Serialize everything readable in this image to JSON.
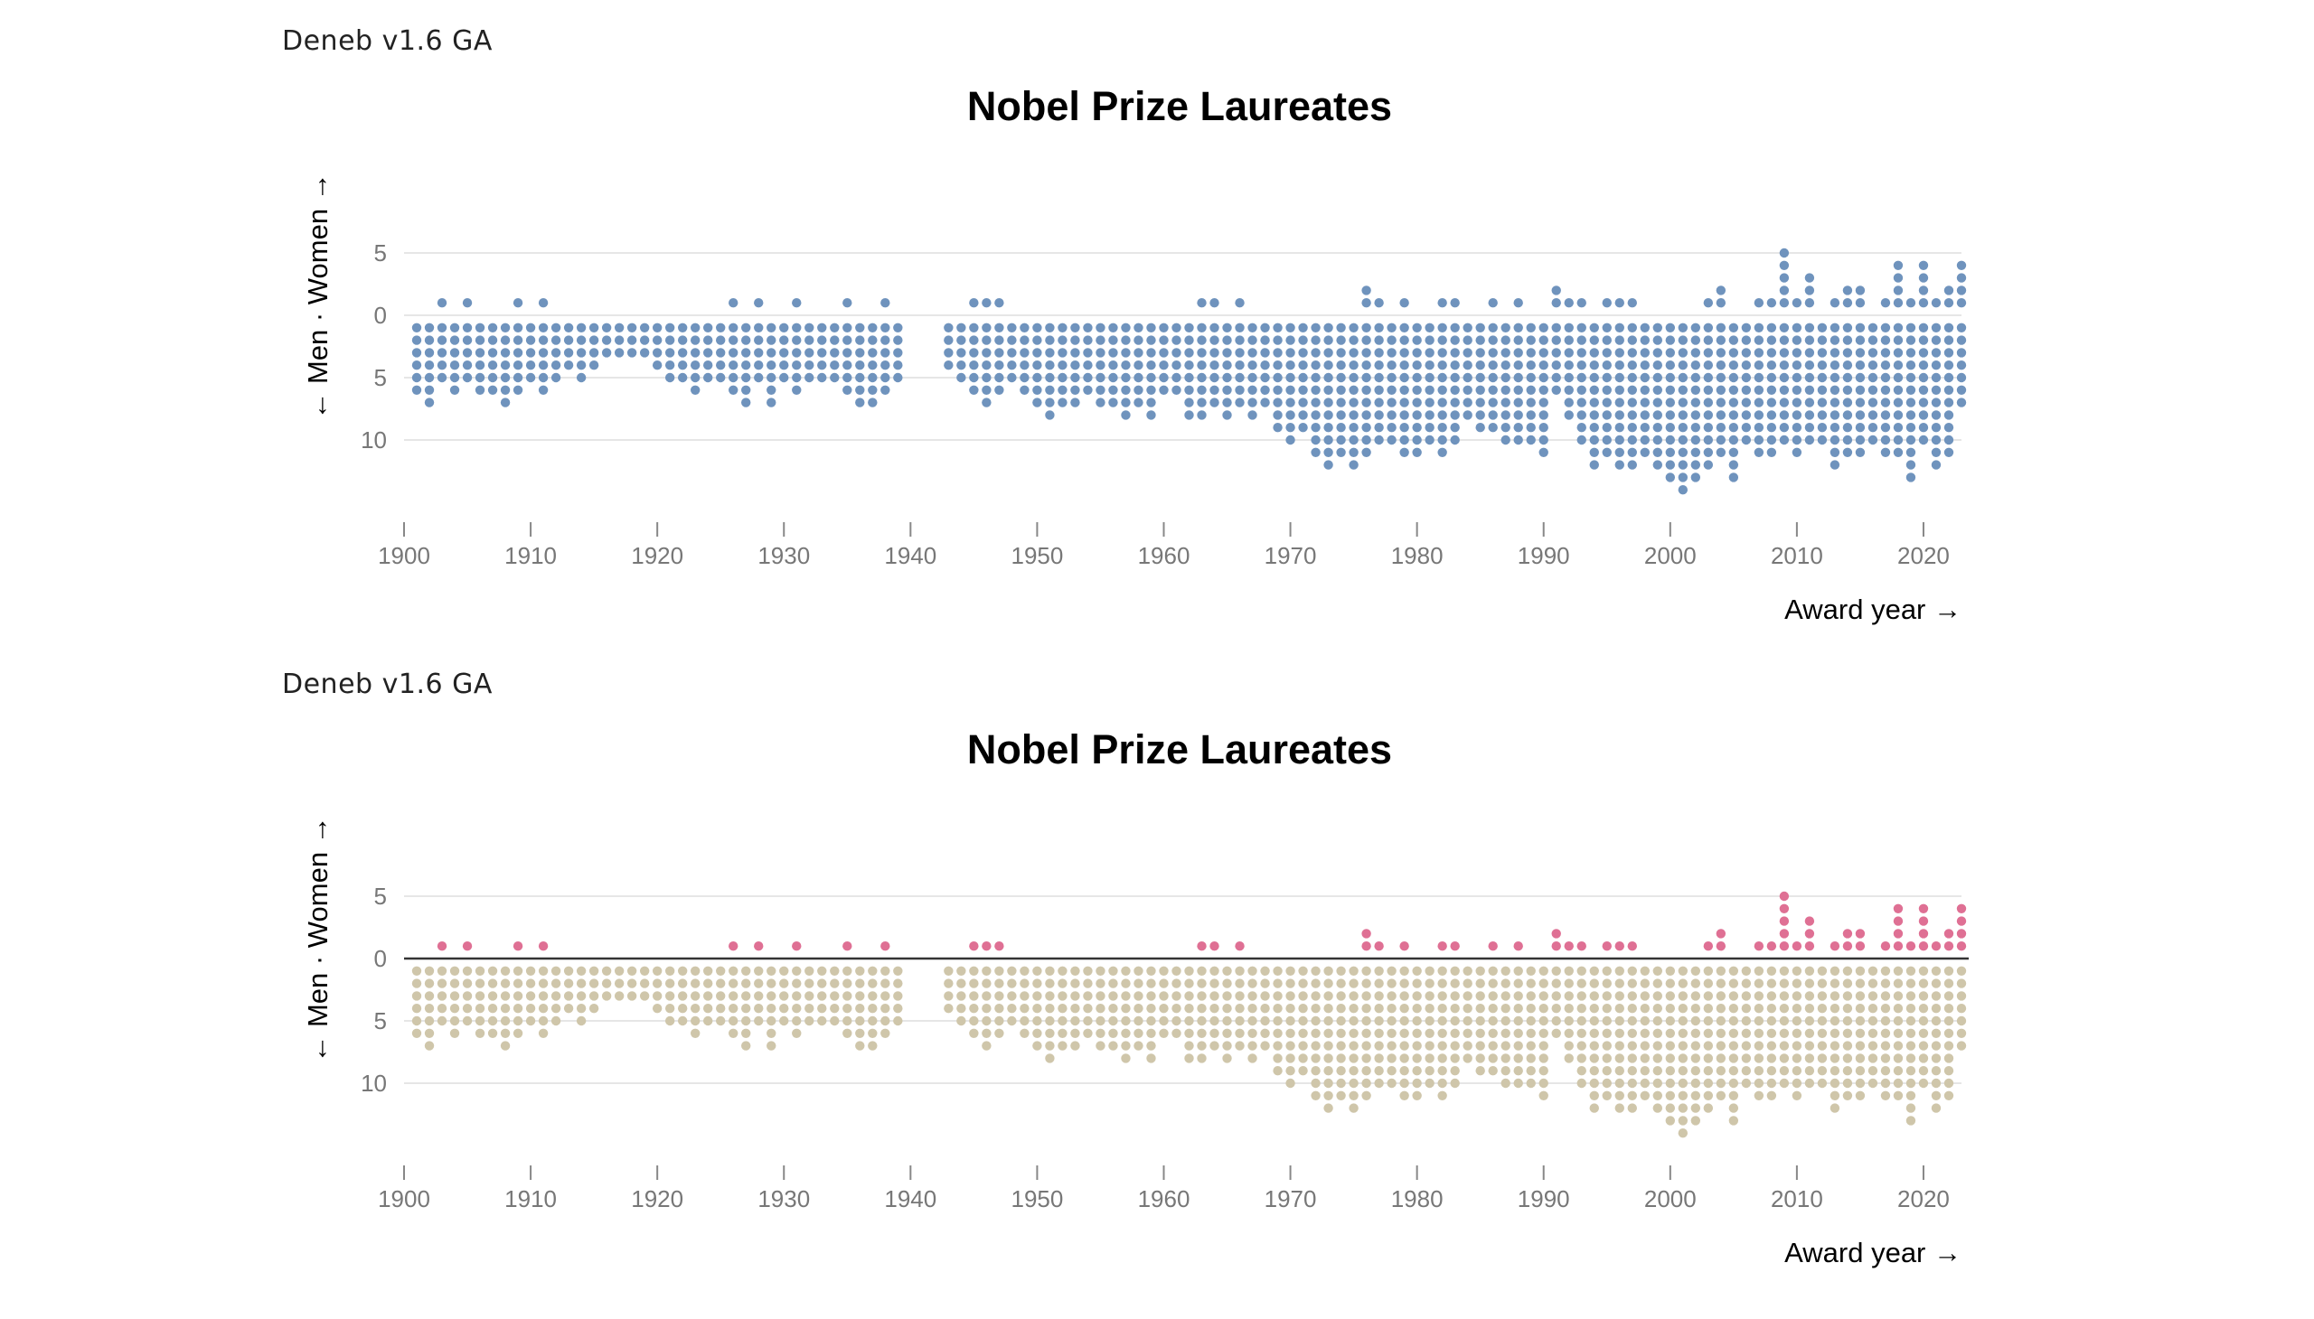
{
  "colors": {
    "single": "#6f93bd",
    "men": "#cfc6aa",
    "women": "#df7094",
    "grid": "#dddddd",
    "zero_rule": "#333333"
  },
  "chart_data": [
    {
      "type": "scatter",
      "brand": "Deneb v1.6 GA",
      "title": "Nobel Prize Laureates",
      "xlabel": "Award year →",
      "ylabel": "← Men · Women →",
      "xlim": [
        1900,
        2023
      ],
      "xticks": [
        1900,
        1910,
        1920,
        1930,
        1940,
        1950,
        1960,
        1970,
        1980,
        1990,
        2000,
        2010,
        2020
      ],
      "yticks": [
        {
          "value": 5,
          "label": "5"
        },
        {
          "value": 0,
          "label": "0"
        },
        {
          "value": -5,
          "label": "5"
        },
        {
          "value": -10,
          "label": "10"
        }
      ],
      "color_by_gender": false,
      "zero_rule": false,
      "unit_dots": true,
      "years": [
        1901,
        1902,
        1903,
        1904,
        1905,
        1906,
        1907,
        1908,
        1909,
        1910,
        1911,
        1912,
        1913,
        1914,
        1915,
        1916,
        1917,
        1918,
        1919,
        1920,
        1921,
        1922,
        1923,
        1924,
        1925,
        1926,
        1927,
        1928,
        1929,
        1930,
        1931,
        1932,
        1933,
        1934,
        1935,
        1936,
        1937,
        1938,
        1939,
        1943,
        1944,
        1945,
        1946,
        1947,
        1948,
        1949,
        1950,
        1951,
        1952,
        1953,
        1954,
        1955,
        1956,
        1957,
        1958,
        1959,
        1960,
        1961,
        1962,
        1963,
        1964,
        1965,
        1966,
        1967,
        1968,
        1969,
        1970,
        1971,
        1972,
        1973,
        1974,
        1975,
        1976,
        1977,
        1978,
        1979,
        1980,
        1981,
        1982,
        1983,
        1984,
        1985,
        1986,
        1987,
        1988,
        1989,
        1990,
        1991,
        1992,
        1993,
        1994,
        1995,
        1996,
        1997,
        1998,
        1999,
        2000,
        2001,
        2002,
        2003,
        2004,
        2005,
        2006,
        2007,
        2008,
        2009,
        2010,
        2011,
        2012,
        2013,
        2014,
        2015,
        2016,
        2017,
        2018,
        2019,
        2020,
        2021,
        2022,
        2023
      ],
      "men": [
        6,
        7,
        5,
        6,
        5,
        6,
        6,
        7,
        6,
        5,
        6,
        5,
        4,
        5,
        4,
        3,
        3,
        3,
        3,
        4,
        5,
        5,
        6,
        5,
        5,
        6,
        7,
        5,
        7,
        5,
        6,
        5,
        5,
        5,
        6,
        7,
        7,
        6,
        5,
        4,
        5,
        6,
        7,
        6,
        5,
        6,
        7,
        8,
        7,
        7,
        6,
        7,
        7,
        8,
        7,
        8,
        6,
        6,
        8,
        8,
        7,
        8,
        7,
        8,
        7,
        9,
        10,
        9,
        11,
        12,
        11,
        12,
        11,
        10,
        10,
        11,
        11,
        10,
        11,
        10,
        8,
        9,
        9,
        10,
        10,
        10,
        11,
        6,
        8,
        10,
        12,
        11,
        12,
        12,
        11,
        12,
        13,
        14,
        13,
        12,
        11,
        13,
        10,
        11,
        11,
        10,
        11,
        10,
        10,
        12,
        11,
        11,
        10,
        11,
        11,
        13,
        10,
        12,
        11,
        7
      ],
      "women": [
        0,
        0,
        1,
        0,
        1,
        0,
        0,
        0,
        1,
        0,
        1,
        0,
        0,
        0,
        0,
        0,
        0,
        0,
        0,
        0,
        0,
        0,
        0,
        0,
        0,
        1,
        0,
        1,
        0,
        0,
        1,
        0,
        0,
        0,
        1,
        0,
        0,
        1,
        0,
        0,
        0,
        1,
        1,
        1,
        0,
        0,
        0,
        0,
        0,
        0,
        0,
        0,
        0,
        0,
        0,
        0,
        0,
        0,
        0,
        1,
        1,
        0,
        1,
        0,
        0,
        0,
        0,
        0,
        0,
        0,
        0,
        0,
        2,
        1,
        0,
        1,
        0,
        0,
        1,
        1,
        0,
        0,
        1,
        0,
        1,
        0,
        0,
        2,
        1,
        1,
        0,
        1,
        1,
        1,
        0,
        0,
        0,
        0,
        0,
        1,
        2,
        0,
        0,
        1,
        1,
        5,
        1,
        3,
        0,
        1,
        2,
        2,
        0,
        1,
        4,
        1,
        4,
        1,
        2,
        4
      ]
    },
    {
      "type": "scatter",
      "brand": "Deneb v1.6 GA",
      "title": "Nobel Prize Laureates",
      "xlabel": "Award year →",
      "ylabel": "← Men · Women →",
      "xlim": [
        1900,
        2023
      ],
      "xticks": [
        1900,
        1910,
        1920,
        1930,
        1940,
        1950,
        1960,
        1970,
        1980,
        1990,
        2000,
        2010,
        2020
      ],
      "yticks": [
        {
          "value": 5,
          "label": "5"
        },
        {
          "value": 0,
          "label": "0"
        },
        {
          "value": -5,
          "label": "5"
        },
        {
          "value": -10,
          "label": "10"
        }
      ],
      "color_by_gender": true,
      "zero_rule": true,
      "unit_dots": true,
      "years": [
        1901,
        1902,
        1903,
        1904,
        1905,
        1906,
        1907,
        1908,
        1909,
        1910,
        1911,
        1912,
        1913,
        1914,
        1915,
        1916,
        1917,
        1918,
        1919,
        1920,
        1921,
        1922,
        1923,
        1924,
        1925,
        1926,
        1927,
        1928,
        1929,
        1930,
        1931,
        1932,
        1933,
        1934,
        1935,
        1936,
        1937,
        1938,
        1939,
        1943,
        1944,
        1945,
        1946,
        1947,
        1948,
        1949,
        1950,
        1951,
        1952,
        1953,
        1954,
        1955,
        1956,
        1957,
        1958,
        1959,
        1960,
        1961,
        1962,
        1963,
        1964,
        1965,
        1966,
        1967,
        1968,
        1969,
        1970,
        1971,
        1972,
        1973,
        1974,
        1975,
        1976,
        1977,
        1978,
        1979,
        1980,
        1981,
        1982,
        1983,
        1984,
        1985,
        1986,
        1987,
        1988,
        1989,
        1990,
        1991,
        1992,
        1993,
        1994,
        1995,
        1996,
        1997,
        1998,
        1999,
        2000,
        2001,
        2002,
        2003,
        2004,
        2005,
        2006,
        2007,
        2008,
        2009,
        2010,
        2011,
        2012,
        2013,
        2014,
        2015,
        2016,
        2017,
        2018,
        2019,
        2020,
        2021,
        2022,
        2023
      ],
      "men": [
        6,
        7,
        5,
        6,
        5,
        6,
        6,
        7,
        6,
        5,
        6,
        5,
        4,
        5,
        4,
        3,
        3,
        3,
        3,
        4,
        5,
        5,
        6,
        5,
        5,
        6,
        7,
        5,
        7,
        5,
        6,
        5,
        5,
        5,
        6,
        7,
        7,
        6,
        5,
        4,
        5,
        6,
        7,
        6,
        5,
        6,
        7,
        8,
        7,
        7,
        6,
        7,
        7,
        8,
        7,
        8,
        6,
        6,
        8,
        8,
        7,
        8,
        7,
        8,
        7,
        9,
        10,
        9,
        11,
        12,
        11,
        12,
        11,
        10,
        10,
        11,
        11,
        10,
        11,
        10,
        8,
        9,
        9,
        10,
        10,
        10,
        11,
        6,
        8,
        10,
        12,
        11,
        12,
        12,
        11,
        12,
        13,
        14,
        13,
        12,
        11,
        13,
        10,
        11,
        11,
        10,
        11,
        10,
        10,
        12,
        11,
        11,
        10,
        11,
        11,
        13,
        10,
        12,
        11,
        7
      ],
      "women": [
        0,
        0,
        1,
        0,
        1,
        0,
        0,
        0,
        1,
        0,
        1,
        0,
        0,
        0,
        0,
        0,
        0,
        0,
        0,
        0,
        0,
        0,
        0,
        0,
        0,
        1,
        0,
        1,
        0,
        0,
        1,
        0,
        0,
        0,
        1,
        0,
        0,
        1,
        0,
        0,
        0,
        1,
        1,
        1,
        0,
        0,
        0,
        0,
        0,
        0,
        0,
        0,
        0,
        0,
        0,
        0,
        0,
        0,
        0,
        1,
        1,
        0,
        1,
        0,
        0,
        0,
        0,
        0,
        0,
        0,
        0,
        0,
        2,
        1,
        0,
        1,
        0,
        0,
        1,
        1,
        0,
        0,
        1,
        0,
        1,
        0,
        0,
        2,
        1,
        1,
        0,
        1,
        1,
        1,
        0,
        0,
        0,
        0,
        0,
        1,
        2,
        0,
        0,
        1,
        1,
        5,
        1,
        3,
        0,
        1,
        2,
        2,
        0,
        1,
        4,
        1,
        4,
        1,
        2,
        4
      ]
    }
  ]
}
